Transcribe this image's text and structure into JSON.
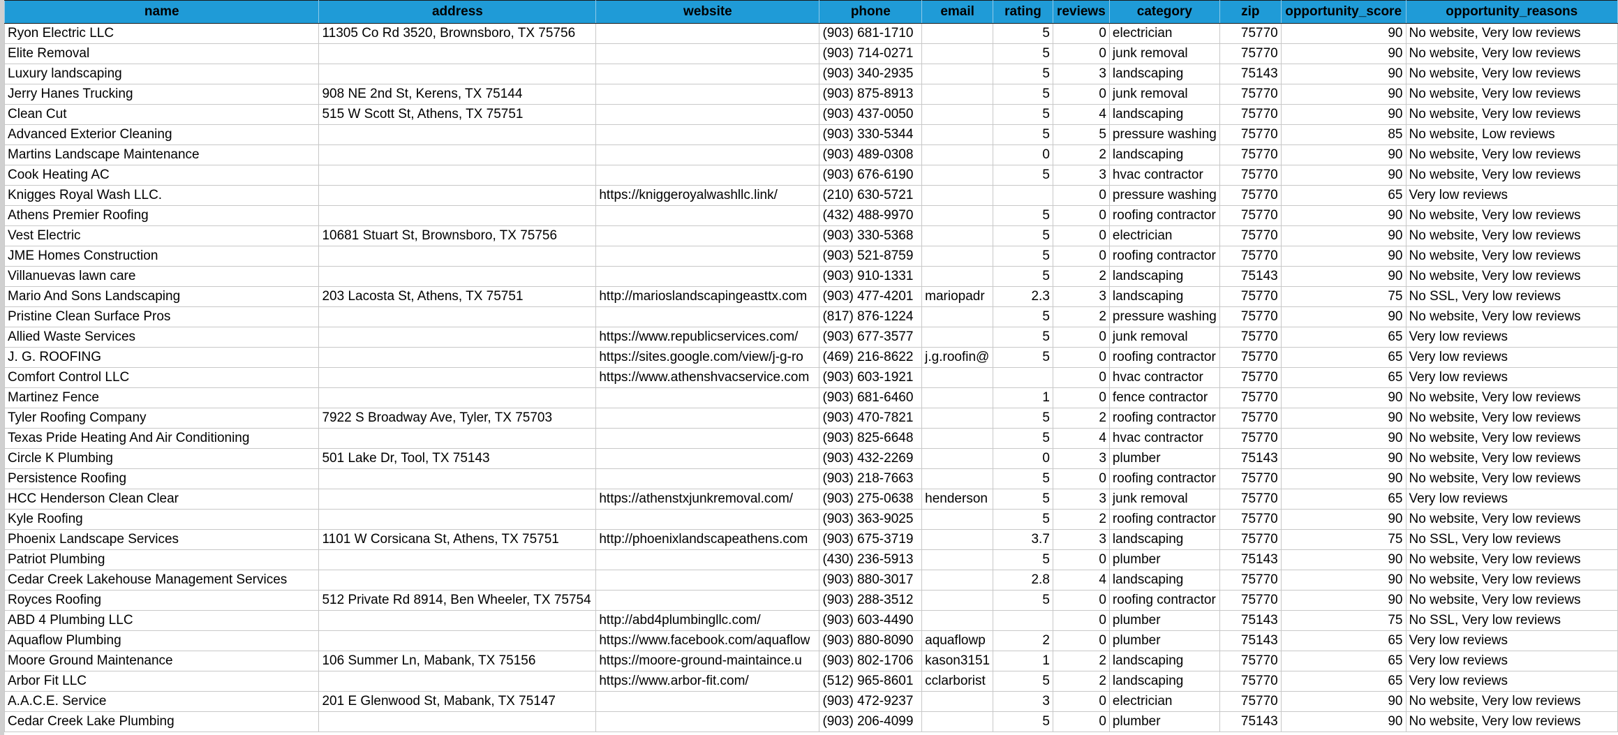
{
  "table": {
    "columns": [
      "name",
      "address",
      "website",
      "phone",
      "email",
      "rating",
      "reviews",
      "category",
      "zip",
      "opportunity_score",
      "opportunity_reasons"
    ],
    "rows": [
      [
        "Ryon Electric LLC",
        "11305 Co Rd 3520, Brownsboro, TX 75756",
        null,
        "(903) 681-1710",
        null,
        5,
        0,
        "electrician",
        75770,
        90,
        "No website, Very low reviews"
      ],
      [
        "Elite Removal",
        null,
        null,
        "(903) 714-0271",
        null,
        5,
        0,
        "junk removal",
        75770,
        90,
        "No website, Very low reviews"
      ],
      [
        "Luxury landscaping",
        null,
        null,
        "(903) 340-2935",
        null,
        5,
        3,
        "landscaping",
        75143,
        90,
        "No website, Very low reviews"
      ],
      [
        "Jerry Hanes Trucking",
        "908 NE 2nd St, Kerens, TX 75144",
        null,
        "(903) 875-8913",
        null,
        5,
        0,
        "junk removal",
        75770,
        90,
        "No website, Very low reviews"
      ],
      [
        "Clean Cut",
        "515 W Scott St, Athens, TX 75751",
        null,
        "(903) 437-0050",
        null,
        5,
        4,
        "landscaping",
        75770,
        90,
        "No website, Very low reviews"
      ],
      [
        "Advanced Exterior Cleaning",
        null,
        null,
        "(903) 330-5344",
        null,
        5,
        5,
        "pressure washing",
        75770,
        85,
        "No website, Low reviews"
      ],
      [
        "Martins Landscape Maintenance",
        null,
        null,
        "(903) 489-0308",
        null,
        0,
        2,
        "landscaping",
        75770,
        90,
        "No website, Very low reviews"
      ],
      [
        "Cook Heating AC",
        null,
        null,
        "(903) 676-6190",
        null,
        5,
        3,
        "hvac contractor",
        75770,
        90,
        "No website, Very low reviews"
      ],
      [
        "Knigges Royal Wash LLC.",
        null,
        "https://kniggeroyalwashllc.link/",
        "(210) 630-5721",
        null,
        null,
        0,
        "pressure washing",
        75770,
        65,
        "Very low reviews"
      ],
      [
        "Athens Premier Roofing",
        null,
        null,
        "(432) 488-9970",
        null,
        5,
        0,
        "roofing contractor",
        75770,
        90,
        "No website, Very low reviews"
      ],
      [
        "Vest Electric",
        "10681 Stuart St, Brownsboro, TX 75756",
        null,
        "(903) 330-5368",
        null,
        5,
        0,
        "electrician",
        75770,
        90,
        "No website, Very low reviews"
      ],
      [
        "JME Homes Construction",
        null,
        null,
        "(903) 521-8759",
        null,
        5,
        0,
        "roofing contractor",
        75770,
        90,
        "No website, Very low reviews"
      ],
      [
        "Villanuevas lawn care",
        null,
        null,
        "(903) 910-1331",
        null,
        5,
        2,
        "landscaping",
        75143,
        90,
        "No website, Very low reviews"
      ],
      [
        "Mario And Sons Landscaping",
        "203 Lacosta St, Athens, TX 75751",
        "http://marioslandscapingeasttx.com",
        "(903) 477-4201",
        "mariopadr",
        2.3,
        3,
        "landscaping",
        75770,
        75,
        "No SSL, Very low reviews"
      ],
      [
        "Pristine Clean Surface Pros",
        null,
        null,
        "(817) 876-1224",
        null,
        5,
        2,
        "pressure washing",
        75770,
        90,
        "No website, Very low reviews"
      ],
      [
        "Allied Waste Services",
        null,
        "https://www.republicservices.com/",
        "(903) 677-3577",
        null,
        5,
        0,
        "junk removal",
        75770,
        65,
        "Very low reviews"
      ],
      [
        "J. G. ROOFING",
        null,
        "https://sites.google.com/view/j-g-ro",
        "(469) 216-8622",
        "j.g.roofin@",
        5,
        0,
        "roofing contractor",
        75770,
        65,
        "Very low reviews"
      ],
      [
        "Comfort Control LLC",
        null,
        "https://www.athenshvacservice.com",
        "(903) 603-1921",
        null,
        null,
        0,
        "hvac contractor",
        75770,
        65,
        "Very low reviews"
      ],
      [
        "Martinez Fence",
        null,
        null,
        "(903) 681-6460",
        null,
        1,
        0,
        "fence contractor",
        75770,
        90,
        "No website, Very low reviews"
      ],
      [
        "Tyler Roofing Company",
        "7922 S Broadway Ave, Tyler, TX 75703",
        null,
        "(903) 470-7821",
        null,
        5,
        2,
        "roofing contractor",
        75770,
        90,
        "No website, Very low reviews"
      ],
      [
        "Texas Pride Heating And Air Conditioning",
        null,
        null,
        "(903) 825-6648",
        null,
        5,
        4,
        "hvac contractor",
        75770,
        90,
        "No website, Very low reviews"
      ],
      [
        "Circle K Plumbing",
        "501 Lake Dr, Tool, TX 75143",
        null,
        "(903) 432-2269",
        null,
        0,
        3,
        "plumber",
        75143,
        90,
        "No website, Very low reviews"
      ],
      [
        "Persistence Roofing",
        null,
        null,
        "(903) 218-7663",
        null,
        5,
        0,
        "roofing contractor",
        75770,
        90,
        "No website, Very low reviews"
      ],
      [
        "HCC Henderson Clean Clear",
        null,
        "https://athenstxjunkremoval.com/",
        "(903) 275-0638",
        "henderson",
        5,
        3,
        "junk removal",
        75770,
        65,
        "Very low reviews"
      ],
      [
        "Kyle Roofing",
        null,
        null,
        "(903) 363-9025",
        null,
        5,
        2,
        "roofing contractor",
        75770,
        90,
        "No website, Very low reviews"
      ],
      [
        "Phoenix Landscape Services",
        "1101 W Corsicana St, Athens, TX 75751",
        "http://phoenixlandscapeathens.com",
        "(903) 675-3719",
        null,
        3.7,
        3,
        "landscaping",
        75770,
        75,
        "No SSL, Very low reviews"
      ],
      [
        "Patriot Plumbing",
        null,
        null,
        "(430) 236-5913",
        null,
        5,
        0,
        "plumber",
        75143,
        90,
        "No website, Very low reviews"
      ],
      [
        "Cedar Creek Lakehouse Management Services",
        null,
        null,
        "(903) 880-3017",
        null,
        2.8,
        4,
        "landscaping",
        75770,
        90,
        "No website, Very low reviews"
      ],
      [
        "Royces Roofing",
        "512 Private Rd 8914, Ben Wheeler, TX 75754",
        null,
        "(903) 288-3512",
        null,
        5,
        0,
        "roofing contractor",
        75770,
        90,
        "No website, Very low reviews"
      ],
      [
        "ABD 4 Plumbing LLC",
        null,
        "http://abd4plumbingllc.com/",
        "(903) 603-4490",
        null,
        null,
        0,
        "plumber",
        75143,
        75,
        "No SSL, Very low reviews"
      ],
      [
        "Aquaflow Plumbing",
        null,
        "https://www.facebook.com/aquaflow",
        "(903) 880-8090",
        "aquaflowp",
        2,
        0,
        "plumber",
        75143,
        65,
        "Very low reviews"
      ],
      [
        "Moore Ground Maintenance",
        "106 Summer Ln, Mabank, TX 75156",
        "https://moore-ground-maintaince.u",
        "(903) 802-1706",
        "kason3151",
        1,
        2,
        "landscaping",
        75770,
        65,
        "Very low reviews"
      ],
      [
        "Arbor Fit LLC",
        null,
        "https://www.arbor-fit.com/",
        "(512) 965-8601",
        "cclarborist",
        5,
        2,
        "landscaping",
        75770,
        65,
        "Very low reviews"
      ],
      [
        "A.A.C.E. Service",
        "201 E Glenwood St, Mabank, TX 75147",
        null,
        "(903) 472-9237",
        null,
        3,
        0,
        "electrician",
        75770,
        90,
        "No website, Very low reviews"
      ],
      [
        "Cedar Creek Lake Plumbing",
        null,
        null,
        "(903) 206-4099",
        null,
        5,
        0,
        "plumber",
        75143,
        90,
        "No website, Very low reviews"
      ]
    ]
  }
}
